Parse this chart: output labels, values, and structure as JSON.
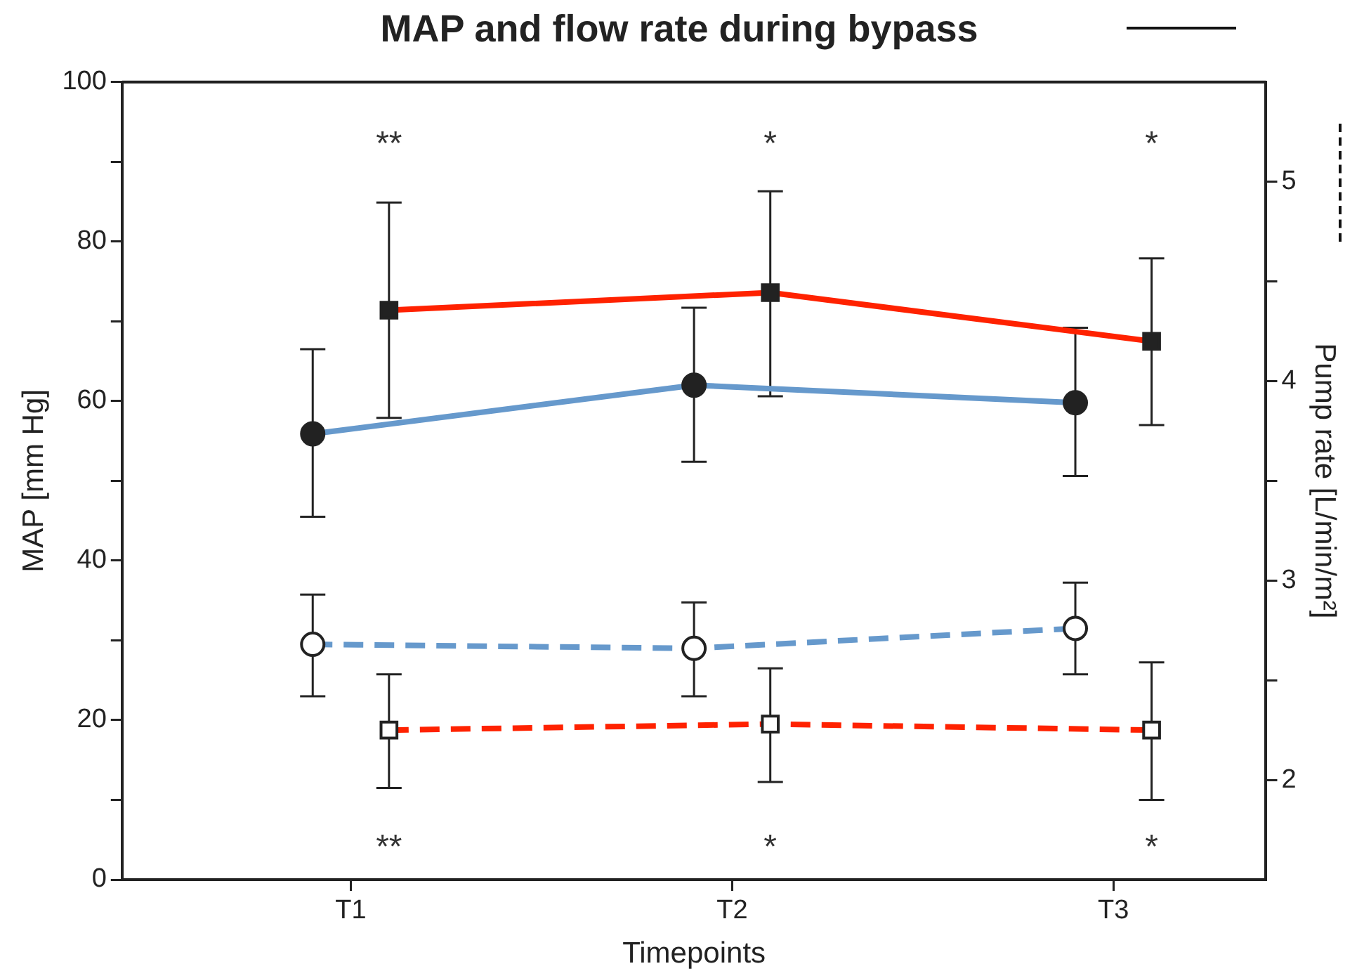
{
  "chart_data": {
    "type": "line",
    "title": "MAP and flow rate during bypass",
    "xlabel": "Timepoints",
    "ylabel": "MAP [mm Hg]",
    "y2label": "Pump rate [L/min/m²]",
    "categories": [
      "T1",
      "T2",
      "T3"
    ],
    "ylim": [
      0,
      100
    ],
    "yticks": [
      0,
      {
        "value": 10,
        "label": null
      },
      20,
      {
        "value": 30,
        "label": null
      },
      40,
      {
        "value": 50,
        "label": null
      },
      60,
      {
        "value": 70,
        "label": null
      },
      80,
      {
        "value": 90,
        "label": null
      },
      100
    ],
    "y2lim": [
      1.5,
      5.5
    ],
    "y2ticks": [
      2,
      {
        "value": 2.5,
        "label": null
      },
      3,
      {
        "value": 3.5,
        "label": null
      },
      4,
      {
        "value": 4.5,
        "label": null
      },
      5
    ],
    "grid": false,
    "legend": false,
    "series": [
      {
        "color": "#6699cc",
        "marker": "circle",
        "line_style": "solid",
        "values": [
          55.9,
          62.0,
          59.8
        ],
        "errors": [
          [
            45.5,
            66.5
          ],
          [
            52.4,
            71.7
          ],
          [
            50.6,
            69.2
          ]
        ]
      },
      {
        "color": "#ff2200",
        "marker": "square",
        "line_style": "solid",
        "values": [
          71.4,
          73.6,
          67.5
        ],
        "errors": [
          [
            57.9,
            84.9
          ],
          [
            60.6,
            86.3
          ],
          [
            57.0,
            77.9
          ]
        ]
      },
      {
        "color": "#6699cc",
        "marker": "circle",
        "line_style": "dashed",
        "axis": "y2",
        "values": [
          2.68,
          2.66,
          2.76
        ],
        "errors": [
          [
            2.42,
            2.93
          ],
          [
            2.42,
            2.89
          ],
          [
            2.53,
            2.99
          ]
        ]
      },
      {
        "color": "#ff2200",
        "marker": "square",
        "line_style": "dashed",
        "axis": "y2",
        "values": [
          2.25,
          2.28,
          2.25
        ],
        "errors": [
          [
            1.96,
            2.53
          ],
          [
            1.99,
            2.56
          ],
          [
            1.9,
            2.59
          ]
        ]
      }
    ],
    "annotations": [
      "**",
      "*",
      "*",
      "**",
      "*",
      "*"
    ]
  }
}
